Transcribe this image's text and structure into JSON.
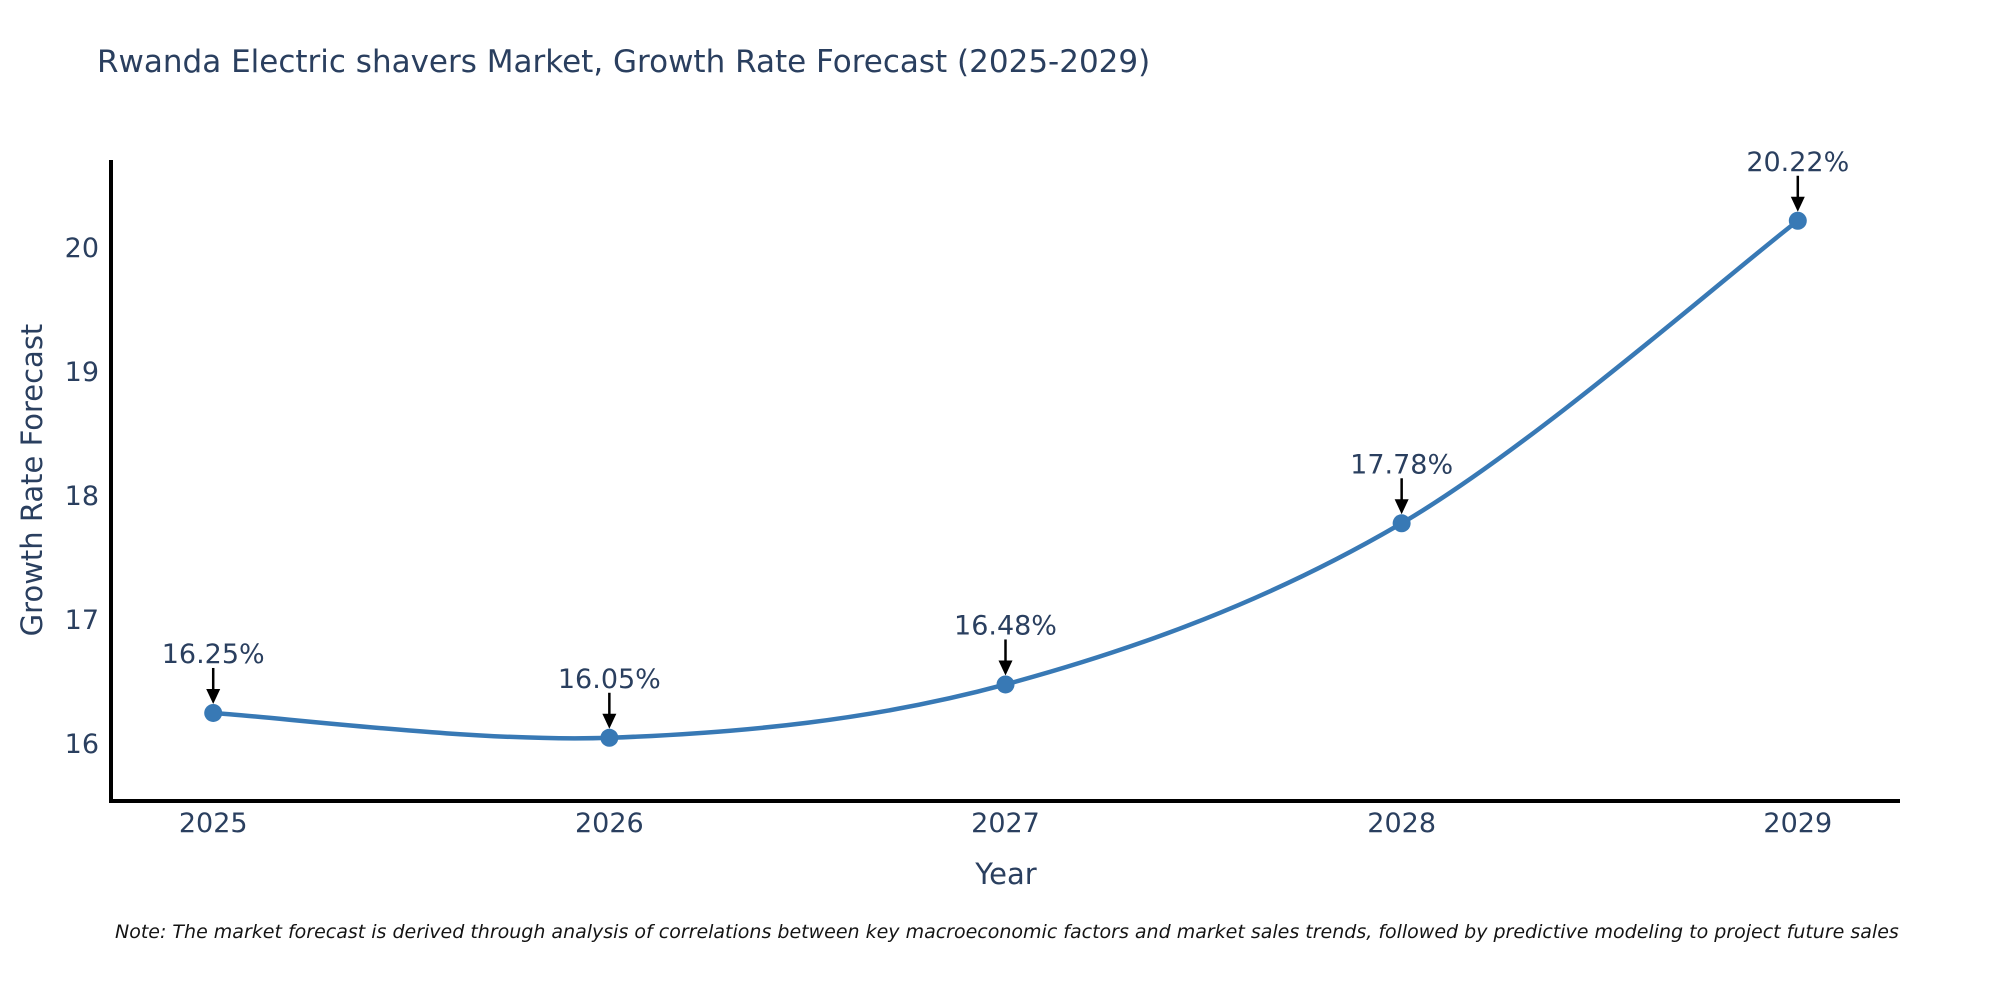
{
  "title": {
    "text": "Rwanda Electric shavers Market, Growth Rate Forecast (2025-2029)",
    "color": "#2a3f5f"
  },
  "note": {
    "text": "Note: The market forecast is derived through analysis of correlations between key macroeconomic factors and market sales trends, followed by predictive modeling to project future sales"
  },
  "chart_data": {
    "type": "line",
    "curve": "spline",
    "title": "Rwanda Electric shavers Market, Growth Rate Forecast (2025-2029)",
    "xlabel": "Year",
    "ylabel": "Growth Rate Forecast",
    "x": [
      2025,
      2026,
      2027,
      2028,
      2029
    ],
    "series": [
      {
        "name": "Growth Rate Forecast",
        "values": [
          16.25,
          16.05,
          16.48,
          17.78,
          20.22
        ]
      }
    ],
    "point_labels": [
      "16.25%",
      "16.05%",
      "16.48%",
      "17.78%",
      "20.22%"
    ],
    "x_ticks": [
      "2025",
      "2026",
      "2027",
      "2028",
      "2029"
    ],
    "y_ticks": [
      16,
      17,
      18,
      19,
      20
    ],
    "xlim": [
      2024.742,
      2029.258
    ],
    "ylim": [
      15.54,
      20.71
    ],
    "grid": false,
    "legend": "none",
    "line_color": "#3879b5",
    "marker_color": "#3879b5",
    "axis_color": "#000000",
    "tick_color": "#2a3f5f",
    "annotation_text_color": "#2a3f5f",
    "annotation_arrow_color": "#000000"
  }
}
